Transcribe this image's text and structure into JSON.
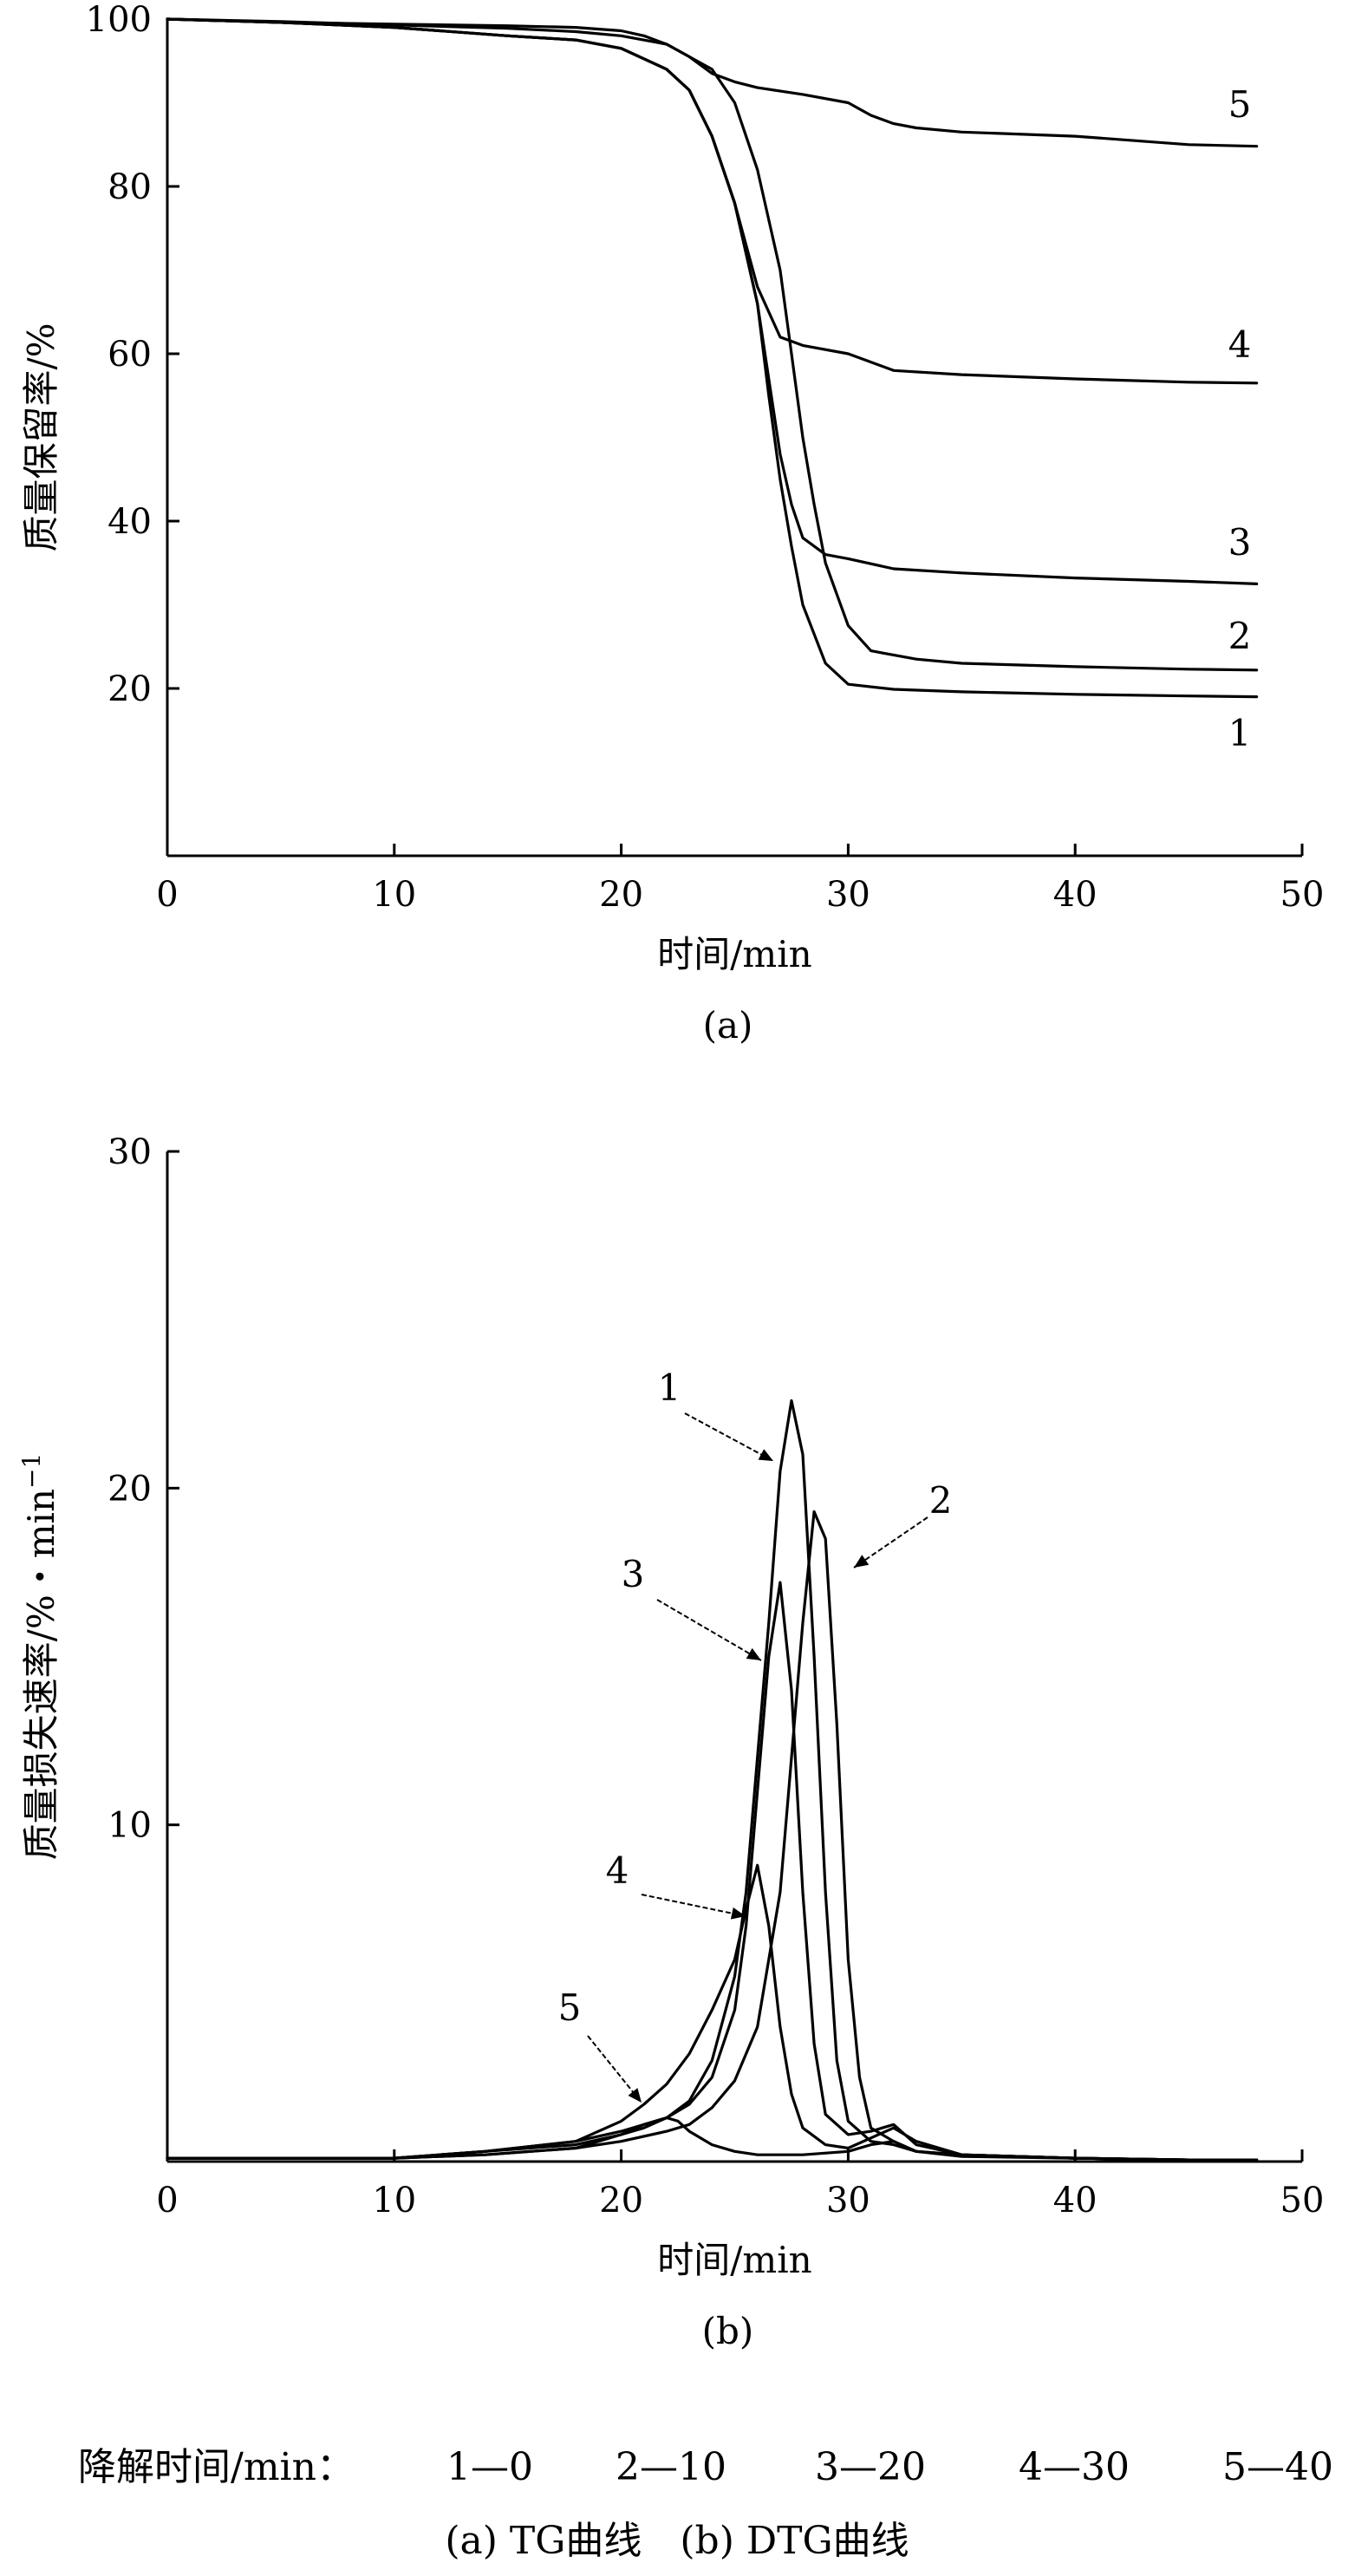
{
  "chart_data": [
    {
      "type": "line",
      "panel_label": "(a)",
      "xlabel": "时间/min",
      "ylabel": "质量保留率/%",
      "xlim": [
        0,
        50
      ],
      "ylim": [
        0,
        100
      ],
      "x_ticks": [
        0,
        10,
        20,
        30,
        40,
        50
      ],
      "y_ticks": [
        20,
        40,
        60,
        80,
        100
      ],
      "grid": false,
      "series": [
        {
          "name": "1",
          "x": [
            0,
            5,
            10,
            15,
            18,
            20,
            22,
            23,
            24,
            25,
            26,
            26.5,
            27,
            27.5,
            28,
            29,
            30,
            32,
            35,
            40,
            45,
            48
          ],
          "y": [
            100,
            99.6,
            99,
            98,
            97.5,
            96.5,
            94,
            91.5,
            86,
            78,
            66,
            55,
            45,
            37,
            30,
            23,
            20.5,
            19.9,
            19.6,
            19.3,
            19.1,
            19
          ]
        },
        {
          "name": "2",
          "x": [
            0,
            5,
            10,
            15,
            18,
            20,
            22,
            24,
            25,
            26,
            27,
            27.5,
            28,
            28.5,
            29,
            30,
            31,
            33,
            35,
            40,
            45,
            48
          ],
          "y": [
            100,
            99.7,
            99.3,
            98.9,
            98.5,
            98,
            97,
            94,
            90,
            82,
            70,
            60,
            50,
            42,
            35,
            27.5,
            24.5,
            23.5,
            23,
            22.6,
            22.3,
            22.2
          ]
        },
        {
          "name": "3",
          "x": [
            0,
            5,
            10,
            15,
            18,
            20,
            22,
            23,
            24,
            25,
            26,
            26.5,
            27,
            27.5,
            28,
            29,
            30,
            32,
            35,
            40,
            45,
            48
          ],
          "y": [
            100,
            99.6,
            99,
            98,
            97.5,
            96.5,
            94,
            91.5,
            86,
            78,
            66,
            57,
            48,
            42,
            38,
            36,
            35.5,
            34.3,
            33.8,
            33.2,
            32.8,
            32.5
          ]
        },
        {
          "name": "4",
          "x": [
            0,
            5,
            10,
            15,
            18,
            20,
            22,
            23,
            24,
            25,
            26,
            27,
            28,
            30,
            31,
            32,
            35,
            40,
            45,
            48
          ],
          "y": [
            100,
            99.6,
            99,
            98,
            97.5,
            96.5,
            94,
            91.5,
            86,
            78,
            68,
            62,
            61,
            60,
            59,
            58,
            57.5,
            57,
            56.6,
            56.5
          ]
        },
        {
          "name": "5",
          "x": [
            0,
            5,
            10,
            15,
            18,
            20,
            21,
            22,
            23,
            24,
            25,
            26,
            28,
            30,
            31,
            32,
            33,
            35,
            40,
            45,
            48
          ],
          "y": [
            100,
            99.6,
            99.4,
            99.2,
            99,
            98.6,
            98,
            97,
            95.5,
            93.5,
            92.5,
            91.8,
            91,
            90,
            88.5,
            87.5,
            87,
            86.5,
            86,
            85,
            84.8
          ]
        }
      ],
      "series_labels": [
        "5",
        "4",
        "3",
        "2",
        "1"
      ]
    },
    {
      "type": "line",
      "panel_label": "(b)",
      "xlabel": "时间/min",
      "ylabel": "质量损失速率/%・min",
      "ylabel_superscript": "−1",
      "xlim": [
        0,
        50
      ],
      "ylim": [
        0,
        30
      ],
      "x_ticks": [
        0,
        10,
        20,
        30,
        40,
        50
      ],
      "y_ticks": [
        10,
        20,
        30
      ],
      "grid": false,
      "series": [
        {
          "name": "1",
          "x": [
            0,
            10,
            14,
            18,
            20,
            22,
            23,
            24,
            25,
            25.5,
            26,
            26.5,
            27,
            27.5,
            28,
            28.5,
            29,
            29.5,
            30,
            31,
            32,
            33,
            35,
            40,
            45,
            48
          ],
          "y": [
            0.1,
            0.1,
            0.3,
            0.6,
            0.9,
            1.3,
            1.8,
            3,
            5.5,
            8,
            12,
            16,
            20.5,
            22.6,
            21,
            15,
            8,
            3,
            1.2,
            0.6,
            0.5,
            0.3,
            0.2,
            0.1,
            0.05,
            0.05
          ]
        },
        {
          "name": "2",
          "x": [
            0,
            10,
            14,
            18,
            20,
            22,
            23,
            24,
            25,
            26,
            27,
            27.5,
            28,
            28.5,
            29,
            29.5,
            30,
            30.5,
            31,
            32,
            33,
            35,
            40,
            45,
            48
          ],
          "y": [
            0.1,
            0.1,
            0.2,
            0.4,
            0.6,
            0.9,
            1.1,
            1.6,
            2.4,
            4,
            8,
            12,
            16,
            19.3,
            18.5,
            13,
            6,
            2.5,
            1,
            0.6,
            0.3,
            0.2,
            0.1,
            0.05,
            0.05
          ]
        },
        {
          "name": "3",
          "x": [
            0,
            10,
            14,
            18,
            20,
            21,
            22,
            23,
            24,
            25,
            25.5,
            26,
            26.5,
            27,
            27.5,
            28,
            28.5,
            29,
            30,
            31,
            32,
            33,
            35,
            40,
            45,
            48
          ],
          "y": [
            0.1,
            0.1,
            0.3,
            0.5,
            0.8,
            1,
            1.3,
            1.7,
            2.5,
            4.5,
            7,
            11,
            15,
            17.2,
            14,
            8,
            3.5,
            1.4,
            0.8,
            0.9,
            1.1,
            0.5,
            0.2,
            0.1,
            0.05,
            0.05
          ]
        },
        {
          "name": "4",
          "x": [
            0,
            10,
            14,
            18,
            20,
            21,
            22,
            23,
            24,
            25,
            25.5,
            26,
            26.5,
            27,
            27.5,
            28,
            29,
            30,
            31,
            32,
            33,
            35,
            40,
            45,
            48
          ],
          "y": [
            0.1,
            0.1,
            0.3,
            0.6,
            1.2,
            1.7,
            2.3,
            3.2,
            4.5,
            6,
            7.5,
            8.8,
            7,
            4,
            2,
            1,
            0.5,
            0.4,
            0.7,
            1,
            0.6,
            0.2,
            0.1,
            0.05,
            0.05
          ]
        },
        {
          "name": "5",
          "x": [
            0,
            10,
            14,
            16,
            18,
            19,
            20,
            21,
            22,
            22.5,
            23,
            24,
            25,
            26,
            28,
            30,
            31,
            32,
            33,
            35,
            40,
            45,
            48
          ],
          "y": [
            0.1,
            0.1,
            0.2,
            0.3,
            0.4,
            0.6,
            0.8,
            1.1,
            1.3,
            1.2,
            0.9,
            0.5,
            0.3,
            0.2,
            0.2,
            0.3,
            0.5,
            0.6,
            0.3,
            0.15,
            0.1,
            0.05,
            0.05
          ]
        }
      ],
      "series_labels": [
        "1",
        "2",
        "3",
        "4",
        "5"
      ]
    }
  ],
  "legend_text": {
    "title": "降解时间/min：",
    "items": [
      "1—0",
      "2—10",
      "3—20",
      "4—30",
      "5—40"
    ]
  },
  "caption": "(a) TG曲线　(b) DTG曲线"
}
